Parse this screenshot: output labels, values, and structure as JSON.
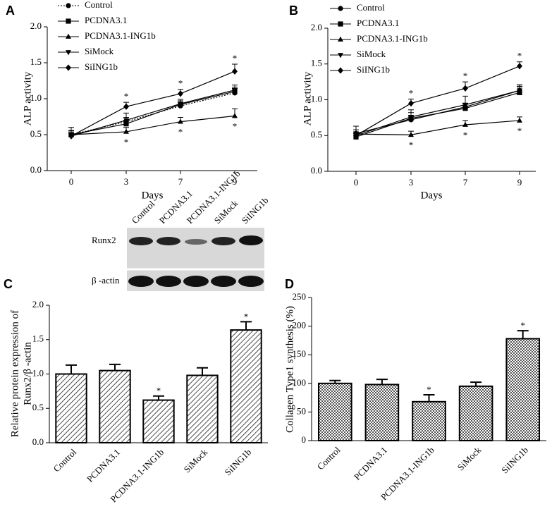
{
  "chart_data": [
    {
      "type": "line",
      "panel": "A",
      "xlabel": "Days",
      "ylabel": "ALP activity",
      "categories": [
        "0",
        "3",
        "7",
        "9"
      ],
      "ylim": [
        0,
        2.0
      ],
      "yticks": [
        {
          "value": 0,
          "label": "0.0"
        },
        0.5,
        {
          "value": 1,
          "label": "1.0"
        },
        1.5,
        {
          "value": 2,
          "label": "2.0"
        }
      ],
      "series": [
        {
          "name": "Control",
          "color": "#000000",
          "marker": "circle",
          "line_style": "dotted",
          "values": [
            0.5,
            0.68,
            0.9,
            1.08
          ],
          "errors": [
            0.06,
            0.06,
            0.05,
            0.06
          ],
          "significance": [
            null,
            null,
            null,
            null
          ]
        },
        {
          "name": "PCDNA3.1",
          "color": "#000000",
          "marker": "square",
          "line_style": "solid",
          "values": [
            0.5,
            0.65,
            0.92,
            1.1
          ],
          "errors": [
            0.1,
            0.05,
            0.05,
            0.06
          ],
          "significance": [
            null,
            null,
            null,
            null
          ]
        },
        {
          "name": "PCDNA3.1-ING1b",
          "color": "#000000",
          "marker": "triangle-up",
          "line_style": "solid",
          "values": [
            0.5,
            0.54,
            0.68,
            0.76
          ],
          "errors": [
            0.05,
            0.06,
            0.06,
            0.1
          ],
          "significance": [
            null,
            "*",
            "*",
            "*"
          ],
          "significance_position": "below"
        },
        {
          "name": "SiMock",
          "color": "#000000",
          "marker": "triangle-down",
          "line_style": "solid",
          "values": [
            0.48,
            0.7,
            0.93,
            1.12
          ],
          "errors": [
            0.05,
            0.1,
            0.06,
            0.07
          ],
          "significance": [
            null,
            null,
            null,
            null
          ]
        },
        {
          "name": "SiING1b",
          "color": "#000000",
          "marker": "diamond",
          "line_style": "solid",
          "values": [
            0.48,
            0.89,
            1.07,
            1.38
          ],
          "errors": [
            0.04,
            0.06,
            0.06,
            0.1
          ],
          "significance": [
            null,
            "*",
            "*",
            "*"
          ],
          "significance_position": "above"
        }
      ]
    },
    {
      "type": "line",
      "panel": "B",
      "xlabel": "Days",
      "ylabel": "ALP activity",
      "categories": [
        "0",
        "3",
        "7",
        "9"
      ],
      "ylim": [
        0,
        2.0
      ],
      "yticks": [
        {
          "value": 0,
          "label": "0.0"
        },
        0.5,
        {
          "value": 1,
          "label": "1.0"
        },
        1.5,
        {
          "value": 2,
          "label": "2.0"
        }
      ],
      "series": [
        {
          "name": "Control",
          "color": "#000000",
          "marker": "circle",
          "line_style": "solid",
          "values": [
            0.53,
            0.72,
            0.9,
            1.13
          ],
          "errors": [
            0.1,
            0.06,
            0.05,
            0.06
          ],
          "significance": [
            null,
            null,
            null,
            null
          ]
        },
        {
          "name": "PCDNA3.1",
          "color": "#000000",
          "marker": "square",
          "line_style": "solid",
          "values": [
            0.48,
            0.74,
            0.88,
            1.1
          ],
          "errors": [
            0.05,
            0.08,
            0.06,
            0.08
          ],
          "significance": [
            null,
            null,
            null,
            null
          ]
        },
        {
          "name": "PCDNA3.1-ING1b",
          "color": "#000000",
          "marker": "triangle-up",
          "line_style": "solid",
          "values": [
            0.52,
            0.51,
            0.65,
            0.71
          ],
          "errors": [
            0.06,
            0.05,
            0.06,
            0.05
          ],
          "significance": [
            null,
            "*",
            "*",
            "*"
          ],
          "significance_position": "below"
        },
        {
          "name": "SiMock",
          "color": "#000000",
          "marker": "triangle-down",
          "line_style": "solid",
          "values": [
            0.5,
            0.76,
            0.93,
            1.13
          ],
          "errors": [
            0.05,
            0.1,
            0.12,
            0.08
          ],
          "significance": [
            null,
            null,
            null,
            null
          ]
        },
        {
          "name": "SiING1b",
          "color": "#000000",
          "marker": "diamond",
          "line_style": "solid",
          "values": [
            0.5,
            0.95,
            1.16,
            1.47
          ],
          "errors": [
            0.05,
            0.06,
            0.09,
            0.06
          ],
          "significance": [
            null,
            "*",
            "*",
            "*"
          ],
          "significance_position": "above"
        }
      ]
    },
    {
      "type": "bar",
      "panel": "C",
      "ylabel": [
        "Relative protein expression of",
        "Runx2/β -actin"
      ],
      "categories": [
        "Control",
        "PCDNA3.1",
        "PCDNA3.1-ING1b",
        "SiMock",
        "SiING1b"
      ],
      "values": [
        1.0,
        1.05,
        0.62,
        0.98,
        1.64
      ],
      "errors": [
        0.13,
        0.09,
        0.06,
        0.11,
        0.12
      ],
      "significance": [
        null,
        null,
        "*",
        null,
        "*"
      ],
      "color": "#000000",
      "pattern": "diagonal",
      "ylim": [
        0,
        2.0
      ],
      "yticks": [
        {
          "value": 0,
          "label": "0.0"
        },
        0.5,
        {
          "value": 1,
          "label": "1.0"
        },
        1.5,
        {
          "value": 2,
          "label": "2.0"
        }
      ],
      "blot_rows": [
        "Runx2",
        "β -actin"
      ]
    },
    {
      "type": "bar",
      "panel": "D",
      "ylabel": "Collagen Type1 synthesis (%)",
      "categories": [
        "Control",
        "PCDNA3.1",
        "PCDNA3.1-ING1b",
        "SiMock",
        "SiING1b"
      ],
      "values": [
        100,
        98,
        68,
        95,
        178
      ],
      "errors": [
        5,
        9,
        12,
        7,
        14
      ],
      "significance": [
        null,
        null,
        "*",
        null,
        "*"
      ],
      "color": "#000000",
      "pattern": "crosshatch",
      "ylim": [
        0,
        250
      ],
      "yticks": [
        0,
        50,
        100,
        150,
        200,
        250
      ]
    }
  ]
}
